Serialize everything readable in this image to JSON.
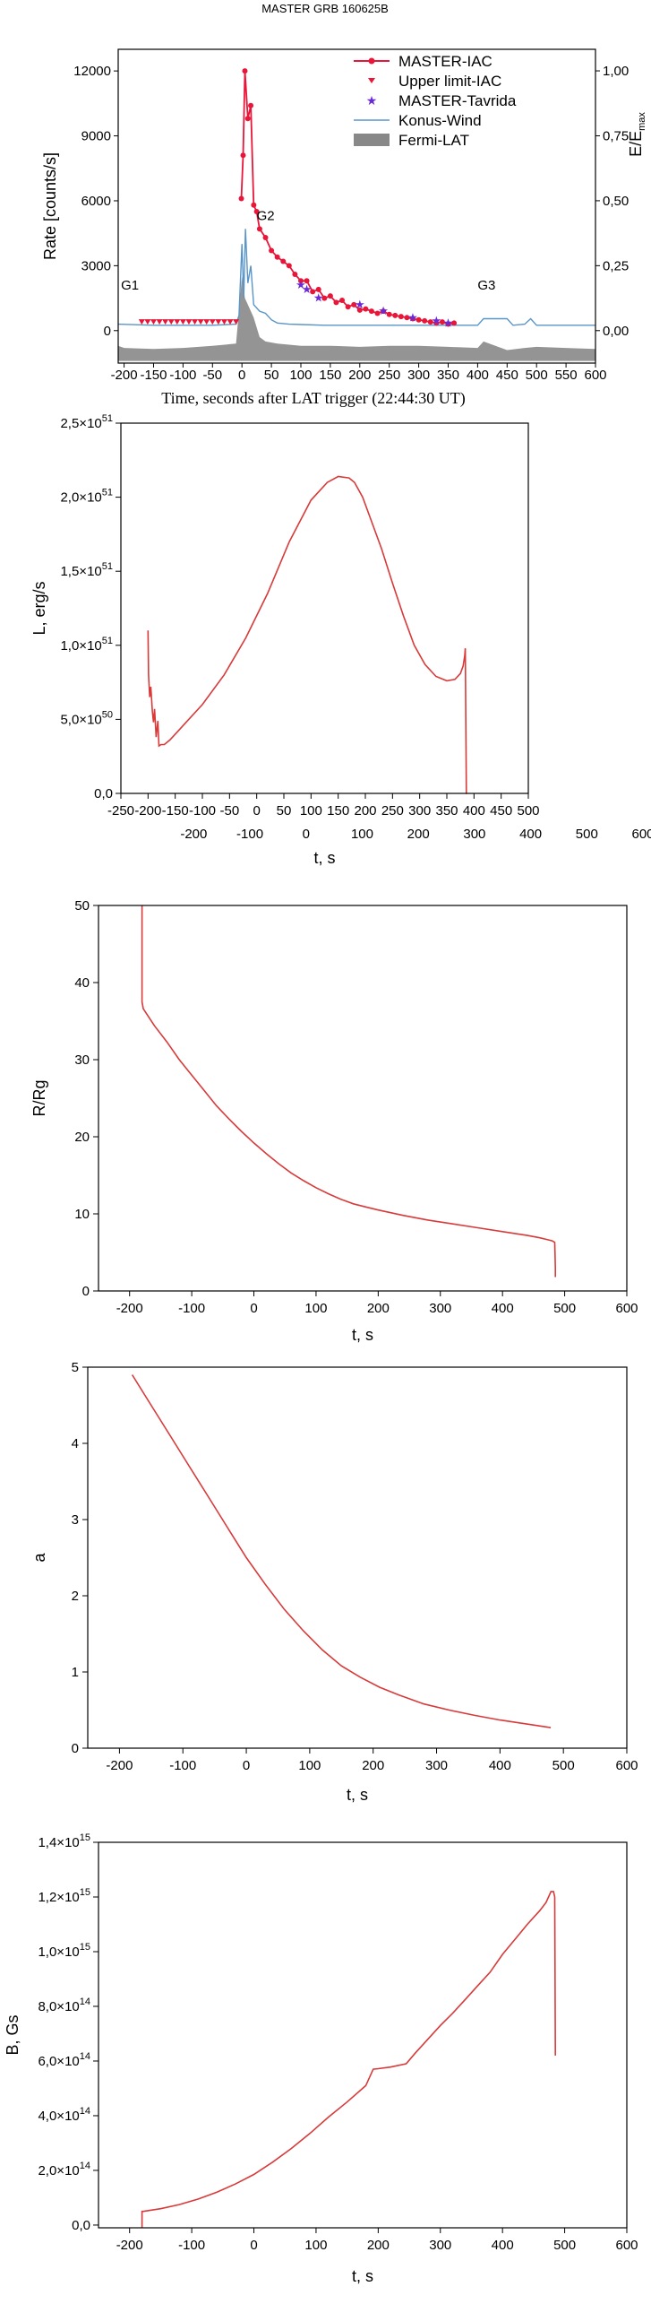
{
  "chart_data": [
    {
      "type": "line",
      "title": "MASTER GRB 160625B",
      "xlabel": "Time, seconds after LAT trigger (22:44:30 UT)",
      "ylabel": "Rate [counts/s]",
      "ylabel_right": "E/E",
      "ylabel_right_sub": "max",
      "xlim": [
        -210,
        600
      ],
      "ylim": [
        -1500,
        13000
      ],
      "ylim_right": [
        -0.125,
        1.083
      ],
      "xticks": [
        -200,
        -150,
        -100,
        -50,
        0,
        50,
        100,
        150,
        200,
        250,
        300,
        350,
        400,
        450,
        500,
        550,
        600
      ],
      "yticks": [
        0,
        3000,
        6000,
        9000,
        12000
      ],
      "yticks_right": [
        "0,00",
        "0,25",
        "0,50",
        "0,75",
        "1,00"
      ],
      "annotations": [
        "G1",
        "G2",
        "G3"
      ],
      "legend_position": "top-right",
      "series": [
        {
          "name": "MASTER-IAC",
          "color": "#e8173a",
          "x": [
            -1,
            2,
            5,
            10,
            15,
            20,
            25,
            30,
            40,
            50,
            60,
            70,
            80,
            90,
            100,
            110,
            120,
            130,
            140,
            150,
            160,
            170,
            180,
            190,
            200,
            210,
            220,
            230,
            240,
            250,
            260,
            270,
            280,
            290,
            300,
            310,
            320,
            330,
            340,
            350,
            360
          ],
          "y": [
            6100,
            8100,
            12000,
            9800,
            10400,
            5800,
            5500,
            4700,
            4300,
            3700,
            3400,
            3200,
            3000,
            2600,
            2300,
            2300,
            1800,
            1900,
            1500,
            1600,
            1300,
            1400,
            1100,
            1200,
            950,
            1000,
            900,
            800,
            900,
            750,
            700,
            650,
            600,
            550,
            500,
            450,
            400,
            350,
            400,
            300,
            350
          ]
        },
        {
          "name": "Upper limit-IAC",
          "color": "#e8173a",
          "x": [
            -170,
            -160,
            -150,
            -140,
            -130,
            -120,
            -110,
            -100,
            -90,
            -80,
            -70,
            -60,
            -50,
            -40,
            -30,
            -20,
            -10
          ],
          "y": [
            400,
            400,
            400,
            400,
            400,
            400,
            400,
            400,
            400,
            400,
            400,
            400,
            400,
            400,
            400,
            400,
            400
          ]
        },
        {
          "name": "MASTER-Tavrida",
          "color": "#6a2bd6",
          "x": [
            100,
            110,
            130,
            200,
            240,
            290,
            330,
            350
          ],
          "y": [
            2100,
            1900,
            1500,
            1200,
            900,
            600,
            450,
            350
          ]
        },
        {
          "name": "Konus-Wind",
          "color": "#5a95c8",
          "x": [
            -210,
            -150,
            -100,
            -50,
            -10,
            -5,
            0,
            3,
            6,
            10,
            15,
            20,
            30,
            40,
            50,
            60,
            80,
            100,
            140,
            200,
            300,
            350,
            400,
            410,
            450,
            460,
            480,
            490,
            500,
            550,
            600
          ],
          "y": [
            300,
            250,
            250,
            250,
            300,
            700,
            4000,
            1500,
            4700,
            2200,
            3000,
            1200,
            900,
            800,
            500,
            350,
            300,
            280,
            250,
            250,
            250,
            250,
            250,
            550,
            550,
            250,
            300,
            550,
            250,
            250,
            250
          ]
        },
        {
          "name": "Fermi-LAT",
          "color": "#888888",
          "x": [
            -210,
            -200,
            -150,
            -100,
            -50,
            -10,
            0,
            5,
            10,
            20,
            30,
            40,
            60,
            100,
            150,
            200,
            250,
            300,
            350,
            400,
            410,
            450,
            480,
            500,
            550,
            600
          ],
          "y": [
            -700,
            -800,
            -850,
            -800,
            -700,
            -600,
            2500,
            1500,
            1200,
            600,
            -300,
            -500,
            -600,
            -700,
            -700,
            -750,
            -700,
            -700,
            -750,
            -800,
            -500,
            -900,
            -800,
            -750,
            -800,
            -850
          ]
        }
      ]
    },
    {
      "type": "line",
      "xlabel": "t, s",
      "ylabel": "L, erg/s",
      "xlim": [
        -250,
        500
      ],
      "ylim": [
        0,
        2.5e+51
      ],
      "xticks": [
        -250,
        -200,
        -150,
        -100,
        -50,
        0,
        50,
        100,
        150,
        200,
        250,
        300,
        350,
        400,
        450,
        500
      ],
      "xticks_lower": [
        "-200",
        "-100",
        "0",
        "100",
        "200",
        "300",
        "400",
        "500",
        "600"
      ],
      "yticks": [
        "0,0",
        "5,0×10",
        "1,0×10",
        "1,5×10",
        "2,0×10",
        "2,5×10"
      ],
      "ytick_exps": [
        "",
        "50",
        "51",
        "51",
        "51",
        "51"
      ],
      "series": [
        {
          "color": "#d83a3a",
          "x": [
            -200,
            -199,
            -197,
            -195,
            -192,
            -190,
            -188,
            -185,
            -182,
            -180,
            -176,
            -170,
            -160,
            -150,
            -130,
            -100,
            -60,
            -20,
            20,
            60,
            100,
            130,
            150,
            170,
            180,
            195,
            210,
            230,
            250,
            270,
            290,
            310,
            330,
            350,
            365,
            375,
            380,
            383,
            384,
            385,
            386,
            387
          ],
          "y": [
            1.1e+51,
            8e+50,
            6.5e+50,
            7.2e+50,
            5.5e+50,
            4.8e+50,
            5.7e+50,
            3.8e+50,
            4.9e+50,
            3.2e+50,
            3.3e+50,
            3.3e+50,
            3.6e+50,
            4e+50,
            4.8e+50,
            6e+50,
            8e+50,
            1.05e+51,
            1.35e+51,
            1.7e+51,
            1.98e+51,
            2.1e+51,
            2.14e+51,
            2.13e+51,
            2.1e+51,
            2e+51,
            1.85e+51,
            1.65e+51,
            1.42e+51,
            1.2e+51,
            1e+51,
            8.7e+50,
            7.9e+50,
            7.6e+50,
            7.7e+50,
            8.1e+50,
            8.6e+50,
            9.3e+50,
            9.8e+50,
            5e+50,
            0,
            0
          ]
        }
      ]
    },
    {
      "type": "line",
      "xlabel": "t, s",
      "ylabel": "R/Rg",
      "xlim": [
        -250,
        600
      ],
      "ylim": [
        0,
        50
      ],
      "xticks": [
        -200,
        -100,
        0,
        100,
        200,
        300,
        400,
        500,
        600
      ],
      "yticks": [
        0,
        10,
        20,
        30,
        40,
        50
      ],
      "series": [
        {
          "color": "#d83a3a",
          "x": [
            -180,
            -180,
            -178,
            -160,
            -140,
            -120,
            -100,
            -80,
            -60,
            -40,
            -20,
            0,
            20,
            40,
            60,
            80,
            100,
            120,
            140,
            160,
            180,
            200,
            240,
            280,
            320,
            360,
            400,
            440,
            460,
            470,
            480,
            484,
            485,
            485
          ],
          "y": [
            50,
            37.5,
            36.6,
            34.4,
            32.3,
            30.0,
            28.0,
            26.0,
            24.0,
            22.3,
            20.7,
            19.2,
            17.8,
            16.5,
            15.3,
            14.3,
            13.4,
            12.6,
            11.9,
            11.3,
            10.9,
            10.5,
            9.8,
            9.2,
            8.7,
            8.2,
            7.7,
            7.2,
            6.9,
            6.7,
            6.5,
            6.3,
            3.0,
            1.8
          ]
        }
      ]
    },
    {
      "type": "line",
      "xlabel": "t, s",
      "ylabel": "a",
      "xlim": [
        -250,
        600
      ],
      "ylim": [
        0,
        5
      ],
      "xticks": [
        -200,
        -100,
        0,
        100,
        200,
        300,
        400,
        500,
        600
      ],
      "yticks": [
        0,
        1,
        2,
        3,
        4,
        5
      ],
      "series": [
        {
          "color": "#d83a3a",
          "x": [
            -180,
            -150,
            -120,
            -90,
            -60,
            -30,
            0,
            30,
            60,
            90,
            120,
            150,
            180,
            210,
            240,
            280,
            320,
            360,
            400,
            440,
            480
          ],
          "y": [
            4.9,
            4.5,
            4.1,
            3.7,
            3.3,
            2.9,
            2.5,
            2.15,
            1.82,
            1.54,
            1.29,
            1.08,
            0.93,
            0.8,
            0.7,
            0.58,
            0.5,
            0.43,
            0.37,
            0.32,
            0.27
          ]
        }
      ]
    },
    {
      "type": "line",
      "xlabel": "t, s",
      "ylabel": "B, Gs",
      "xlim": [
        -250,
        600
      ],
      "ylim": [
        -10000000000000.0,
        1400000000000000.0
      ],
      "xticks": [
        -200,
        -100,
        0,
        100,
        200,
        300,
        400,
        500,
        600
      ],
      "yticks": [
        "0,0",
        "2,0×10",
        "4,0×10",
        "6,0×10",
        "8,0×10",
        "1,0×10",
        "1,2×10",
        "1,4×10"
      ],
      "ytick_exps": [
        "",
        "14",
        "14",
        "14",
        "14",
        "15",
        "15",
        "15"
      ],
      "series": [
        {
          "color": "#d83a3a",
          "x": [
            -180,
            -180,
            -178,
            -150,
            -120,
            -90,
            -60,
            -30,
            0,
            30,
            60,
            90,
            120,
            150,
            180,
            192,
            200,
            220,
            245,
            260,
            280,
            300,
            320,
            340,
            360,
            380,
            400,
            420,
            440,
            460,
            470,
            478,
            482,
            484,
            485,
            485
          ],
          "y": [
            -10000000000000.0,
            50000000000000.0,
            50000000000000.0,
            60000000000000.0,
            75000000000000.0,
            95000000000000.0,
            120000000000000.0,
            150000000000000.0,
            185000000000000.0,
            230000000000000.0,
            280000000000000.0,
            335000000000000.0,
            395000000000000.0,
            450000000000000.0,
            510000000000000.0,
            570000000000000.0,
            572000000000000.0,
            578000000000000.0,
            590000000000000.0,
            630000000000000.0,
            680000000000000.0,
            730000000000000.0,
            775000000000000.0,
            825000000000000.0,
            875000000000000.0,
            925000000000000.0,
            990000000000000.0,
            1045000000000000.0,
            1100000000000000.0,
            1150000000000000.0,
            1180000000000000.0,
            1220000000000000.0,
            1220000000000000.0,
            1200000000000000.0,
            620000000000000.0,
            620000000000000.0
          ]
        }
      ]
    }
  ]
}
